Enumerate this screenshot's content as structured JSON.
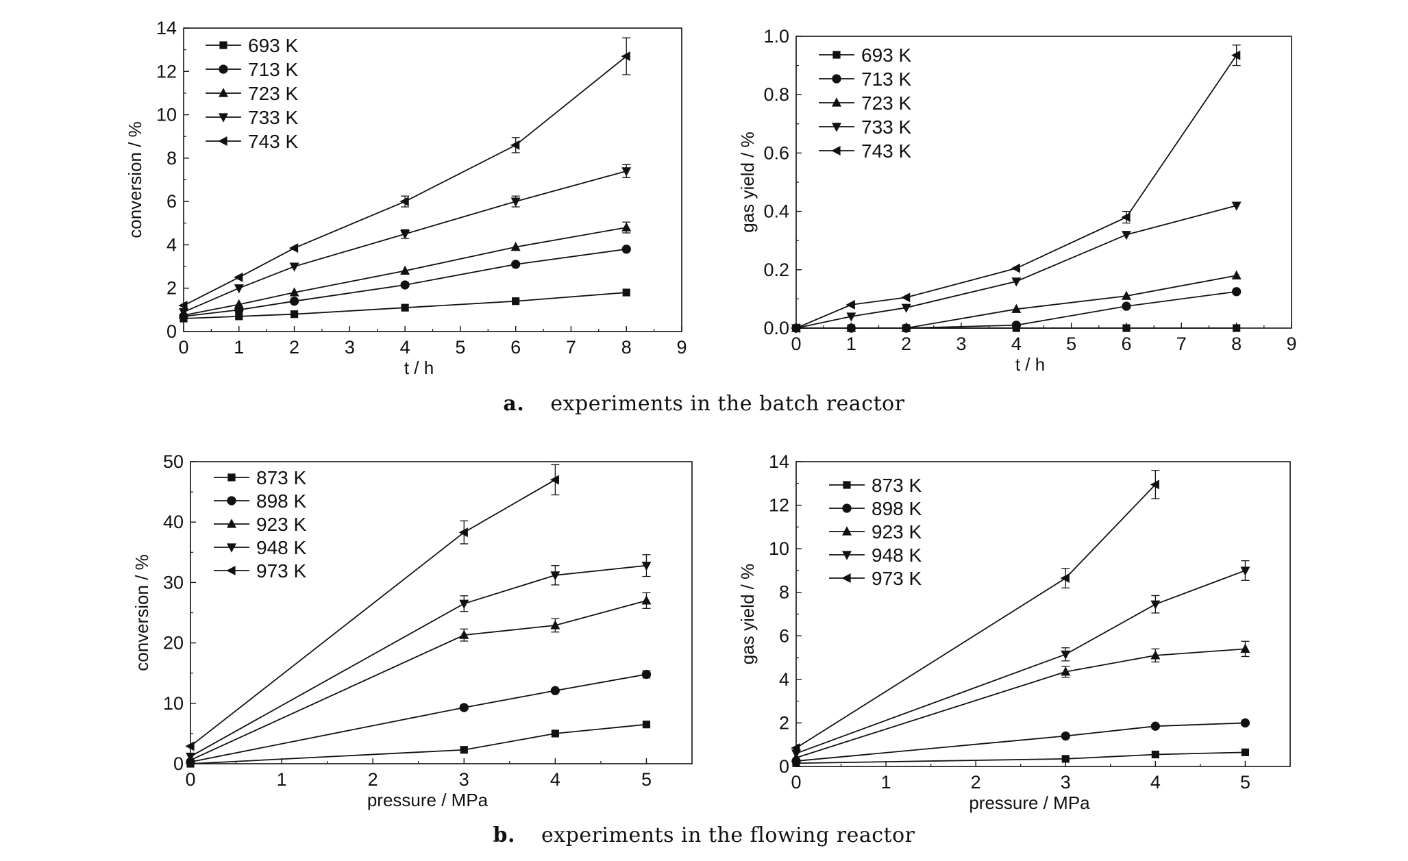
{
  "captions": {
    "a": {
      "letter": "a.",
      "text": "experiments in the batch reactor"
    },
    "b": {
      "letter": "b.",
      "text": "experiments in the flowing reactor"
    }
  },
  "chart_data": [
    {
      "type": "line",
      "xlabel": "t / h",
      "ylabel": "conversion / %",
      "xlim": [
        0,
        9
      ],
      "ylim": [
        0,
        14
      ],
      "xticks": [
        0,
        1,
        2,
        3,
        4,
        5,
        6,
        7,
        8,
        9
      ],
      "yticks": [
        0,
        2,
        4,
        6,
        8,
        10,
        12,
        14
      ],
      "ytick_labels": [
        "0",
        "2",
        "4",
        "6",
        "8",
        "10",
        "12",
        "14"
      ],
      "legend": "top-left",
      "x": [
        0,
        1,
        2,
        4,
        6,
        8
      ],
      "series": [
        {
          "name": "693 K",
          "marker": "square",
          "values": [
            0.6,
            0.7,
            0.8,
            1.1,
            1.4,
            1.8
          ],
          "errors": [
            0,
            0,
            0,
            0,
            0,
            0
          ]
        },
        {
          "name": "713 K",
          "marker": "circle",
          "values": [
            0.7,
            1.0,
            1.4,
            2.15,
            3.1,
            3.8
          ],
          "errors": [
            0,
            0,
            0,
            0,
            0,
            0
          ]
        },
        {
          "name": "723 K",
          "marker": "triangle-up",
          "values": [
            0.75,
            1.25,
            1.8,
            2.8,
            3.9,
            4.8
          ],
          "errors": [
            0,
            0,
            0,
            0,
            0,
            0.25
          ]
        },
        {
          "name": "733 K",
          "marker": "triangle-down",
          "values": [
            0.9,
            2.0,
            3.0,
            4.5,
            6.0,
            7.4
          ],
          "errors": [
            0,
            0,
            0,
            0.2,
            0.25,
            0.3
          ]
        },
        {
          "name": "743 K",
          "marker": "triangle-left",
          "values": [
            1.2,
            2.5,
            3.85,
            6.0,
            8.6,
            12.7
          ],
          "errors": [
            0,
            0,
            0,
            0.25,
            0.35,
            0.85
          ]
        }
      ]
    },
    {
      "type": "line",
      "xlabel": "t / h",
      "ylabel": "gas yield / %",
      "xlim": [
        0,
        9
      ],
      "ylim": [
        0,
        1.0
      ],
      "xticks": [
        0,
        1,
        2,
        3,
        4,
        5,
        6,
        7,
        8,
        9
      ],
      "yticks": [
        0,
        0.2,
        0.4,
        0.6,
        0.8,
        1.0
      ],
      "ytick_labels": [
        "0.0",
        "0.2",
        "0.4",
        "0.6",
        "0.8",
        "1.0"
      ],
      "legend": "top-left",
      "x": [
        0,
        1,
        2,
        4,
        6,
        8
      ],
      "series": [
        {
          "name": "693 K",
          "marker": "square",
          "values": [
            0.0,
            0.0,
            0.0,
            0.0,
            0.0,
            0.0
          ],
          "errors": [
            0,
            0,
            0,
            0,
            0,
            0
          ]
        },
        {
          "name": "713 K",
          "marker": "circle",
          "values": [
            0.0,
            0.0,
            0.0,
            0.01,
            0.075,
            0.125
          ],
          "errors": [
            0,
            0,
            0,
            0,
            0,
            0
          ]
        },
        {
          "name": "723 K",
          "marker": "triangle-up",
          "values": [
            0.0,
            0.0,
            0.0,
            0.065,
            0.11,
            0.18
          ],
          "errors": [
            0,
            0,
            0,
            0,
            0,
            0
          ]
        },
        {
          "name": "733 K",
          "marker": "triangle-down",
          "values": [
            0.0,
            0.04,
            0.07,
            0.16,
            0.32,
            0.42
          ],
          "errors": [
            0,
            0,
            0,
            0,
            0,
            0
          ]
        },
        {
          "name": "743 K",
          "marker": "triangle-left",
          "values": [
            0.0,
            0.08,
            0.105,
            0.205,
            0.38,
            0.935
          ],
          "errors": [
            0,
            0,
            0,
            0,
            0.02,
            0.035
          ]
        }
      ]
    },
    {
      "type": "line",
      "xlabel": "pressure / MPa",
      "ylabel": "conversion / %",
      "xlim": [
        0,
        5.5
      ],
      "ylim": [
        0,
        50
      ],
      "xticks": [
        0,
        1,
        2,
        3,
        4,
        5
      ],
      "yticks": [
        0,
        10,
        20,
        30,
        40,
        50
      ],
      "ytick_labels": [
        "0",
        "10",
        "20",
        "30",
        "40",
        "50"
      ],
      "legend": "top-left",
      "x": [
        0,
        3,
        4,
        5
      ],
      "series": [
        {
          "name": "873 K",
          "marker": "square",
          "values": [
            0.0,
            2.3,
            5.0,
            6.5
          ],
          "errors": [
            0,
            0,
            0,
            0
          ]
        },
        {
          "name": "898 K",
          "marker": "circle",
          "values": [
            0.3,
            9.3,
            12.1,
            14.8
          ],
          "errors": [
            0,
            0,
            0,
            0.6
          ]
        },
        {
          "name": "923 K",
          "marker": "triangle-up",
          "values": [
            0.6,
            21.3,
            22.9,
            27.0
          ],
          "errors": [
            0,
            1.0,
            1.1,
            1.3
          ]
        },
        {
          "name": "948 K",
          "marker": "triangle-down",
          "values": [
            1.2,
            26.5,
            31.2,
            32.8
          ],
          "errors": [
            0,
            1.3,
            1.6,
            1.8
          ]
        },
        {
          "name": "973 K",
          "marker": "triangle-left",
          "values": [
            2.9,
            38.3,
            47.0,
            null
          ],
          "errors": [
            0,
            1.9,
            2.5,
            0
          ]
        }
      ]
    },
    {
      "type": "line",
      "xlabel": "pressure / MPa",
      "ylabel": "gas yield / %",
      "xlim": [
        0,
        5.5
      ],
      "ylim": [
        0,
        14
      ],
      "xticks": [
        0,
        1,
        2,
        3,
        4,
        5
      ],
      "yticks": [
        0,
        2,
        4,
        6,
        8,
        10,
        12,
        14
      ],
      "ytick_labels": [
        "0",
        "2",
        "4",
        "6",
        "8",
        "10",
        "12",
        "14"
      ],
      "legend": "top-left",
      "x": [
        0,
        3,
        4,
        5
      ],
      "series": [
        {
          "name": "873 K",
          "marker": "square",
          "values": [
            0.15,
            0.35,
            0.55,
            0.65
          ],
          "errors": [
            0,
            0,
            0,
            0
          ]
        },
        {
          "name": "898 K",
          "marker": "circle",
          "values": [
            0.25,
            1.4,
            1.85,
            2.0
          ],
          "errors": [
            0,
            0,
            0,
            0
          ]
        },
        {
          "name": "923 K",
          "marker": "triangle-up",
          "values": [
            0.4,
            4.35,
            5.1,
            5.4
          ],
          "errors": [
            0,
            0.25,
            0.3,
            0.35
          ]
        },
        {
          "name": "948 K",
          "marker": "triangle-down",
          "values": [
            0.6,
            5.15,
            7.45,
            9.0
          ],
          "errors": [
            0,
            0.3,
            0.4,
            0.45
          ]
        },
        {
          "name": "973 K",
          "marker": "triangle-left",
          "values": [
            0.85,
            8.65,
            12.95,
            null
          ],
          "errors": [
            0,
            0.45,
            0.65,
            0
          ]
        }
      ]
    }
  ]
}
